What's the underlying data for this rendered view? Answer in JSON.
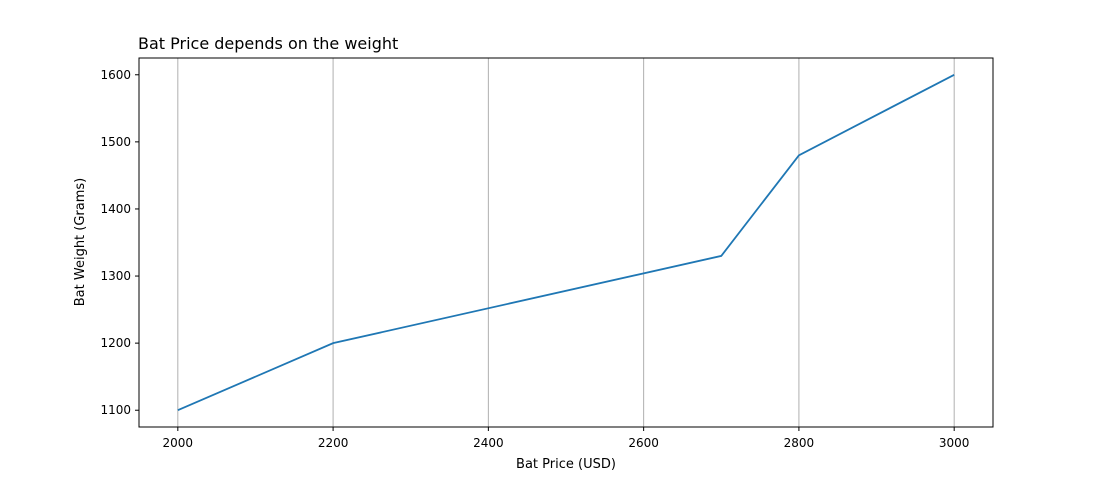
{
  "chart_data": {
    "type": "line",
    "title": "Bat Price depends on the weight",
    "xlabel": "Bat Price (USD)",
    "ylabel": "Bat Weight (Grams)",
    "x": [
      2000,
      2200,
      2700,
      2800,
      3000
    ],
    "series": [
      {
        "values": [
          1100,
          1200,
          1330,
          1480,
          1600
        ],
        "color": "#1f77b4"
      }
    ],
    "xlim": [
      1950,
      3050
    ],
    "ylim": [
      1075,
      1625
    ],
    "xticks": [
      "2000",
      "2200",
      "2400",
      "2600",
      "2800",
      "3000"
    ],
    "yticks": [
      "1100",
      "1200",
      "1300",
      "1400",
      "1500",
      "1600"
    ],
    "grid": "x-axis only",
    "legend": "none"
  }
}
